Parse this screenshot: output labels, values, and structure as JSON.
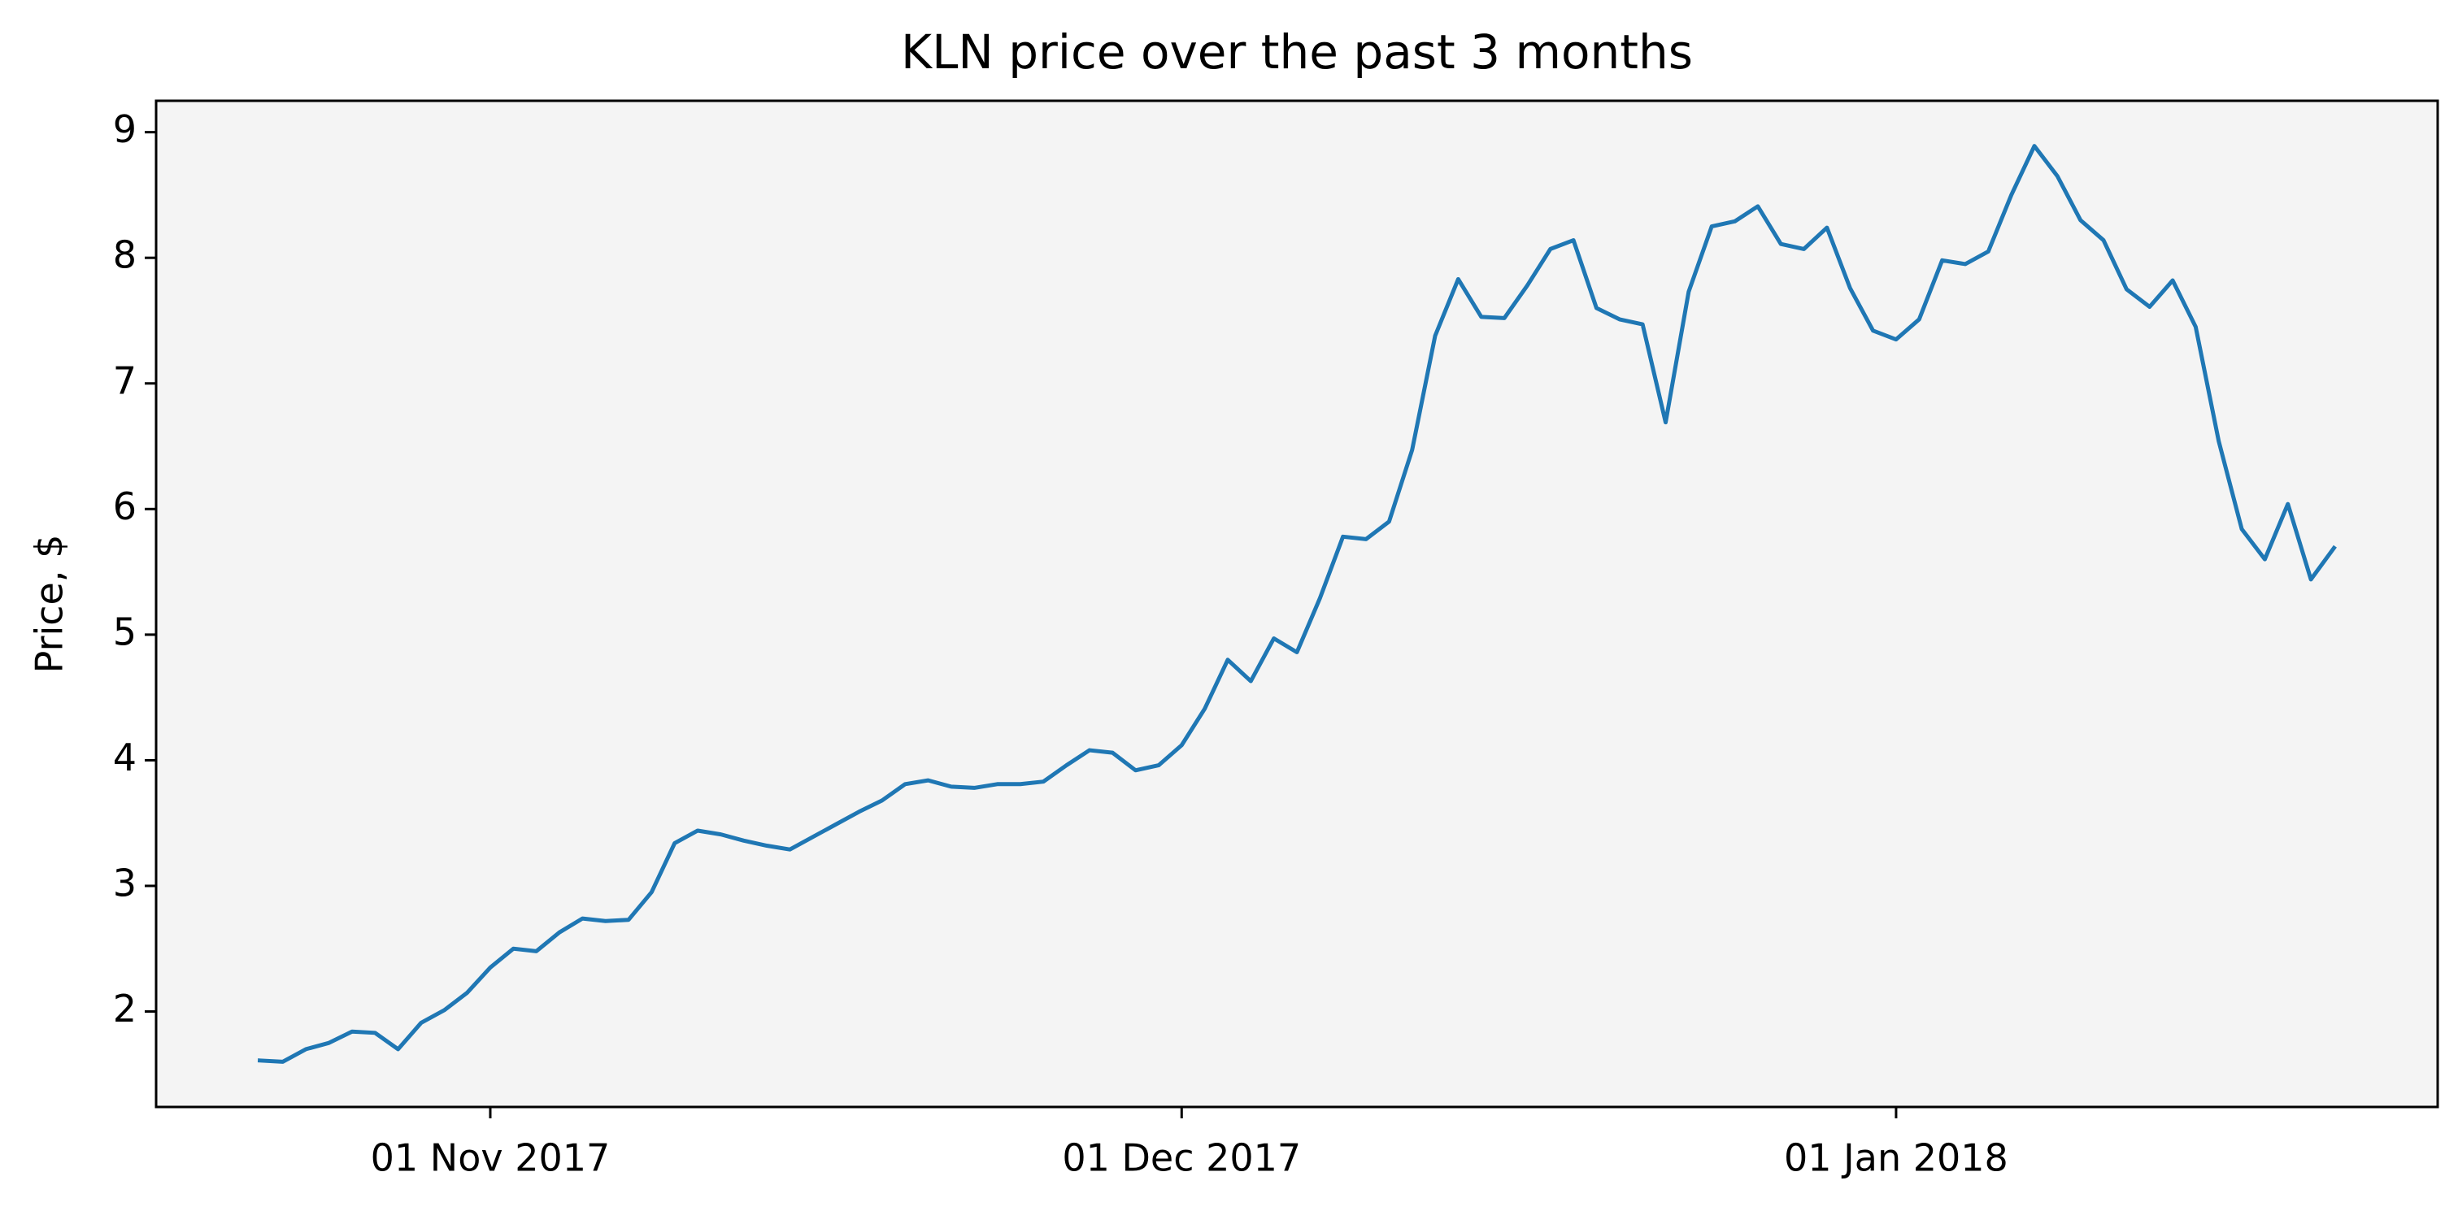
{
  "chart_data": {
    "type": "line",
    "title": "KLN price over the past 3 months",
    "ylabel": "Price, $",
    "x": [
      "2017-10-22",
      "2017-10-23",
      "2017-10-24",
      "2017-10-25",
      "2017-10-26",
      "2017-10-27",
      "2017-10-28",
      "2017-10-29",
      "2017-10-30",
      "2017-10-31",
      "2017-11-01",
      "2017-11-02",
      "2017-11-03",
      "2017-11-04",
      "2017-11-05",
      "2017-11-06",
      "2017-11-07",
      "2017-11-08",
      "2017-11-09",
      "2017-11-10",
      "2017-11-11",
      "2017-11-12",
      "2017-11-13",
      "2017-11-14",
      "2017-11-15",
      "2017-11-16",
      "2017-11-17",
      "2017-11-18",
      "2017-11-19",
      "2017-11-20",
      "2017-11-21",
      "2017-11-22",
      "2017-11-23",
      "2017-11-24",
      "2017-11-25",
      "2017-11-26",
      "2017-11-27",
      "2017-11-28",
      "2017-11-29",
      "2017-11-30",
      "2017-12-01",
      "2017-12-02",
      "2017-12-03",
      "2017-12-04",
      "2017-12-05",
      "2017-12-06",
      "2017-12-07",
      "2017-12-08",
      "2017-12-09",
      "2017-12-10",
      "2017-12-11",
      "2017-12-12",
      "2017-12-13",
      "2017-12-14",
      "2017-12-15",
      "2017-12-16",
      "2017-12-17",
      "2017-12-18",
      "2017-12-19",
      "2017-12-20",
      "2017-12-21",
      "2017-12-22",
      "2017-12-23",
      "2017-12-24",
      "2017-12-25",
      "2017-12-26",
      "2017-12-27",
      "2017-12-28",
      "2017-12-29",
      "2017-12-30",
      "2017-12-31",
      "2018-01-01",
      "2018-01-02",
      "2018-01-03",
      "2018-01-04",
      "2018-01-05",
      "2018-01-06",
      "2018-01-07",
      "2018-01-08",
      "2018-01-09",
      "2018-01-10",
      "2018-01-11",
      "2018-01-12",
      "2018-01-13",
      "2018-01-14",
      "2018-01-15",
      "2018-01-16",
      "2018-01-17",
      "2018-01-18",
      "2018-01-19",
      "2018-01-20"
    ],
    "values": [
      1.61,
      1.6,
      1.7,
      1.75,
      1.84,
      1.83,
      1.7,
      1.91,
      2.01,
      2.15,
      2.35,
      2.5,
      2.48,
      2.63,
      2.74,
      2.72,
      2.73,
      2.95,
      3.34,
      3.44,
      3.41,
      3.36,
      3.32,
      3.29,
      3.39,
      3.49,
      3.59,
      3.68,
      3.81,
      3.84,
      3.79,
      3.78,
      3.81,
      3.81,
      3.83,
      3.96,
      4.08,
      4.06,
      3.92,
      3.96,
      4.12,
      4.41,
      4.8,
      4.63,
      4.97,
      4.86,
      5.29,
      5.78,
      5.76,
      5.9,
      6.47,
      7.38,
      7.83,
      7.53,
      7.52,
      7.78,
      8.07,
      8.14,
      7.6,
      7.51,
      7.47,
      6.69,
      7.73,
      8.25,
      8.29,
      8.41,
      8.11,
      8.07,
      8.24,
      7.76,
      7.42,
      7.35,
      7.51,
      7.98,
      7.95,
      8.05,
      8.5,
      8.89,
      8.65,
      8.3,
      8.14,
      7.75,
      7.61,
      7.82,
      7.45,
      6.54,
      5.84,
      5.6,
      6.04,
      5.44,
      5.69
    ],
    "color": "#1f77b4",
    "xlim": [
      "2017-10-17T12:00",
      "2018-01-24T12:00"
    ],
    "xticks": [
      {
        "value": "2017-11-01",
        "label": "01 Nov 2017"
      },
      {
        "value": "2017-12-01",
        "label": "01 Dec 2017"
      },
      {
        "value": "2018-01-01",
        "label": "01 Jan 2018"
      }
    ],
    "ylim": [
      1.24,
      9.25
    ],
    "yticks": [
      2,
      3,
      4,
      5,
      6,
      7,
      8,
      9
    ]
  }
}
